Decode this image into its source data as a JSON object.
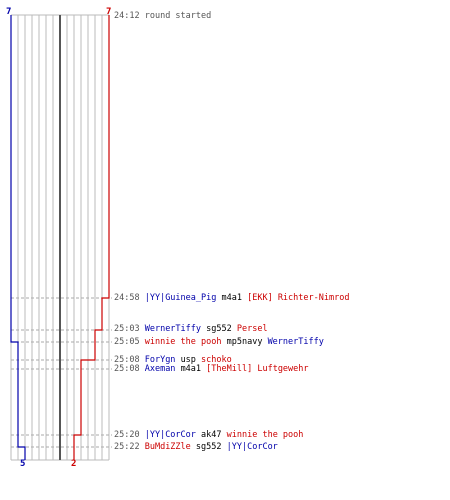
{
  "colors": {
    "team_blue": "#0000aa",
    "team_red": "#cc0000",
    "grid": "#bbbbbb",
    "center_line": "#555555",
    "time_text": "#555555"
  },
  "start_counts": {
    "blue": "7",
    "red": "7"
  },
  "end_counts": {
    "blue": "5",
    "red": "2"
  },
  "events": [
    {
      "time": "24:12",
      "text": "round started"
    },
    {
      "time": "24:58",
      "killer": "|YY|Guinea_Pig",
      "killer_team": "blue",
      "weapon": "m4a1",
      "victim": "[EKK] Richter-Nimrod",
      "victim_team": "red"
    },
    {
      "time": "25:03",
      "killer": "WernerTiffy",
      "killer_team": "blue",
      "weapon": "sg552",
      "victim": "Persel",
      "victim_team": "red"
    },
    {
      "time": "25:05",
      "killer": "winnie the pooh",
      "killer_team": "red",
      "weapon": "mp5navy",
      "victim": "WernerTiffy",
      "victim_team": "blue"
    },
    {
      "time": "25:08",
      "killer": "ForYgn",
      "killer_team": "blue",
      "weapon": "usp",
      "victim": "schoko",
      "victim_team": "red"
    },
    {
      "time": "25:08",
      "killer": "Axeman",
      "killer_team": "blue",
      "weapon": "m4a1",
      "victim": "[TheMill] Luftgewehr",
      "victim_team": "red"
    },
    {
      "time": "25:20",
      "killer": "|YY|CorCor",
      "killer_team": "blue",
      "weapon": "ak47",
      "victim": "winnie the pooh",
      "victim_team": "red"
    },
    {
      "time": "25:22",
      "killer": "BuMdiZZle",
      "killer_team": "red",
      "weapon": "sg552",
      "victim": "|YY|CorCor",
      "victim_team": "blue"
    }
  ]
}
